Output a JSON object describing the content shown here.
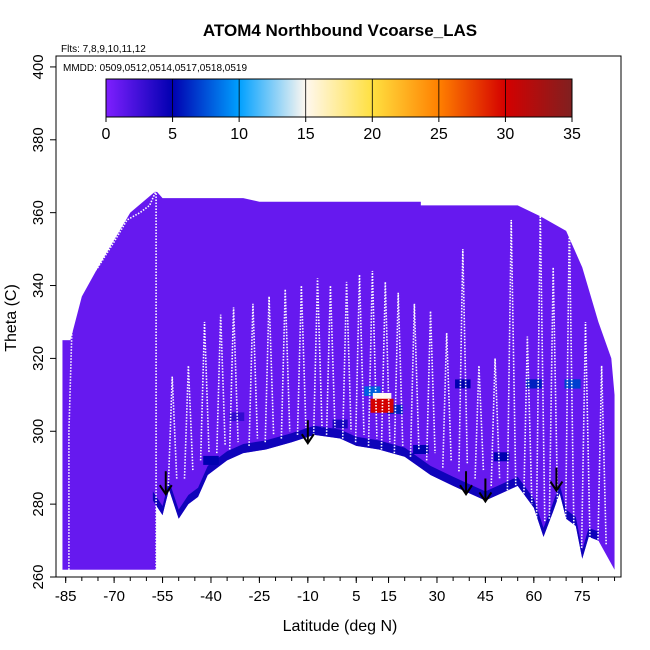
{
  "chart_data": {
    "type": "heatmap",
    "title": "ATOM4 Northbound Vcoarse_LAS",
    "flights_note": "Flts: 7,8,9,10,11,12",
    "dates_note": "MMDD: 0509,0512,0514,0517,0518,0519",
    "xlabel": "Latitude (deg N)",
    "ylabel": "Theta (C)",
    "xlim": [
      -88,
      87
    ],
    "ylim": [
      260,
      403
    ],
    "x_ticks": [
      -85,
      -70,
      -55,
      -40,
      -25,
      -10,
      5,
      15,
      30,
      45,
      60,
      75
    ],
    "x_tick_labels": [
      "-85",
      "-70",
      "-55",
      "-40",
      "-25",
      "-10",
      "5",
      "15",
      "30",
      "45",
      "60",
      "75"
    ],
    "y_ticks": [
      260,
      280,
      300,
      320,
      340,
      360,
      380,
      400
    ],
    "y_tick_labels": [
      "260",
      "280",
      "300",
      "320",
      "340",
      "360",
      "380",
      "400"
    ],
    "colorbar": {
      "min": 0,
      "max": 35,
      "ticks": [
        0,
        5,
        10,
        15,
        20,
        25,
        30,
        35
      ],
      "tick_labels": [
        "0",
        "5",
        "10",
        "15",
        "20",
        "25",
        "30",
        "35"
      ],
      "colors": [
        "#7f1fff",
        "#0000b0",
        "#00a0ff",
        "#fff8f0",
        "#ffe040",
        "#ff8000",
        "#d40000",
        "#802020"
      ]
    },
    "background_value": 1,
    "bottom_boundary": [
      [
        -58,
        281
      ],
      [
        -55,
        277
      ],
      [
        -53,
        284
      ],
      [
        -50,
        276
      ],
      [
        -47,
        280
      ],
      [
        -44,
        282
      ],
      [
        -41,
        288
      ],
      [
        -35,
        292
      ],
      [
        -30,
        294
      ],
      [
        -23,
        295
      ],
      [
        -15,
        297
      ],
      [
        -8,
        299
      ],
      [
        0,
        298
      ],
      [
        5,
        296
      ],
      [
        12,
        295
      ],
      [
        20,
        293
      ],
      [
        28,
        288
      ],
      [
        35,
        285
      ],
      [
        40,
        283
      ],
      [
        45,
        281
      ],
      [
        50,
        283
      ],
      [
        55,
        285
      ],
      [
        60,
        279
      ],
      [
        63,
        271
      ],
      [
        66,
        278
      ],
      [
        68,
        283
      ],
      [
        70,
        276
      ],
      [
        73,
        274
      ],
      [
        75,
        265
      ],
      [
        77,
        271
      ],
      [
        80,
        270
      ]
    ],
    "top_boundary": [
      [
        -85,
        320
      ],
      [
        -80,
        337
      ],
      [
        -75,
        345
      ],
      [
        -65,
        360
      ],
      [
        -57,
        366
      ],
      [
        -55,
        364
      ],
      [
        -30,
        364
      ],
      [
        -25,
        363
      ],
      [
        10,
        363
      ],
      [
        25,
        363
      ],
      [
        25,
        362
      ],
      [
        55,
        362
      ],
      [
        62,
        359
      ],
      [
        70,
        355
      ],
      [
        75,
        345
      ],
      [
        80,
        330
      ],
      [
        84,
        320
      ],
      [
        85,
        310
      ],
      [
        85,
        262
      ]
    ],
    "extra_regions": [
      {
        "name": "southern-column",
        "lat": [
          -86,
          -57
        ],
        "theta": [
          262,
          325
        ],
        "value": 1
      }
    ],
    "hotspots": [
      {
        "lat": 13,
        "theta": 307,
        "value": 30
      },
      {
        "lat": 13,
        "theta": 309,
        "value": 15
      },
      {
        "lat": 10,
        "theta": 311,
        "value": 8
      },
      {
        "lat": 17,
        "theta": 306,
        "value": 6
      },
      {
        "lat": 38,
        "theta": 313,
        "value": 5
      },
      {
        "lat": 60,
        "theta": 313,
        "value": 6
      },
      {
        "lat": 72,
        "theta": 313,
        "value": 7
      },
      {
        "lat": 0,
        "theta": 302,
        "value": 4
      },
      {
        "lat": -32,
        "theta": 304,
        "value": 3
      },
      {
        "lat": 50,
        "theta": 293,
        "value": 5
      },
      {
        "lat": -40,
        "theta": 292,
        "value": 5
      },
      {
        "lat": 25,
        "theta": 295,
        "value": 5
      }
    ],
    "profile_spikes": [
      {
        "lat": -52,
        "peak": 315,
        "base": 285
      },
      {
        "lat": -47,
        "peak": 318,
        "base": 287
      },
      {
        "lat": -42,
        "peak": 330,
        "base": 292
      },
      {
        "lat": -37,
        "peak": 332,
        "base": 294
      },
      {
        "lat": -33,
        "peak": 334,
        "base": 295
      },
      {
        "lat": -27,
        "peak": 335,
        "base": 296
      },
      {
        "lat": -22,
        "peak": 337,
        "base": 297
      },
      {
        "lat": -17,
        "peak": 339,
        "base": 298
      },
      {
        "lat": -12,
        "peak": 340,
        "base": 299
      },
      {
        "lat": -7,
        "peak": 342,
        "base": 299
      },
      {
        "lat": -3,
        "peak": 340,
        "base": 299
      },
      {
        "lat": 2,
        "peak": 341,
        "base": 298
      },
      {
        "lat": 6,
        "peak": 343,
        "base": 297
      },
      {
        "lat": 10,
        "peak": 344,
        "base": 296
      },
      {
        "lat": 14,
        "peak": 341,
        "base": 295
      },
      {
        "lat": 18,
        "peak": 338,
        "base": 294
      },
      {
        "lat": 23,
        "peak": 335,
        "base": 293
      },
      {
        "lat": 28,
        "peak": 333,
        "base": 292
      },
      {
        "lat": 33,
        "peak": 327,
        "base": 290
      },
      {
        "lat": 38,
        "peak": 350,
        "base": 289
      },
      {
        "lat": 43,
        "peak": 318,
        "base": 287
      },
      {
        "lat": 48,
        "peak": 320,
        "base": 285
      },
      {
        "lat": 53,
        "peak": 358,
        "base": 283
      },
      {
        "lat": 58,
        "peak": 326,
        "base": 278
      },
      {
        "lat": 62,
        "peak": 360,
        "base": 273
      },
      {
        "lat": 66,
        "peak": 345,
        "base": 276
      },
      {
        "lat": 71,
        "peak": 357,
        "base": 272
      },
      {
        "lat": 76,
        "peak": 330,
        "base": 268
      },
      {
        "lat": 81,
        "peak": 318,
        "base": 267
      }
    ],
    "southern_trace": [
      [
        -84,
        262
      ],
      [
        -84,
        300
      ],
      [
        -83,
        330
      ],
      [
        -80,
        340
      ],
      [
        -75,
        345
      ],
      [
        -70,
        352
      ],
      [
        -66,
        358
      ],
      [
        -62,
        360
      ],
      [
        -59,
        362
      ],
      [
        -57,
        366
      ],
      [
        -57,
        262
      ]
    ],
    "arrows": [
      {
        "lat": -54,
        "theta": 283
      },
      {
        "lat": -10,
        "theta": 297
      },
      {
        "lat": 39,
        "theta": 283
      },
      {
        "lat": 45,
        "theta": 281
      },
      {
        "lat": 67,
        "theta": 284
      }
    ]
  }
}
